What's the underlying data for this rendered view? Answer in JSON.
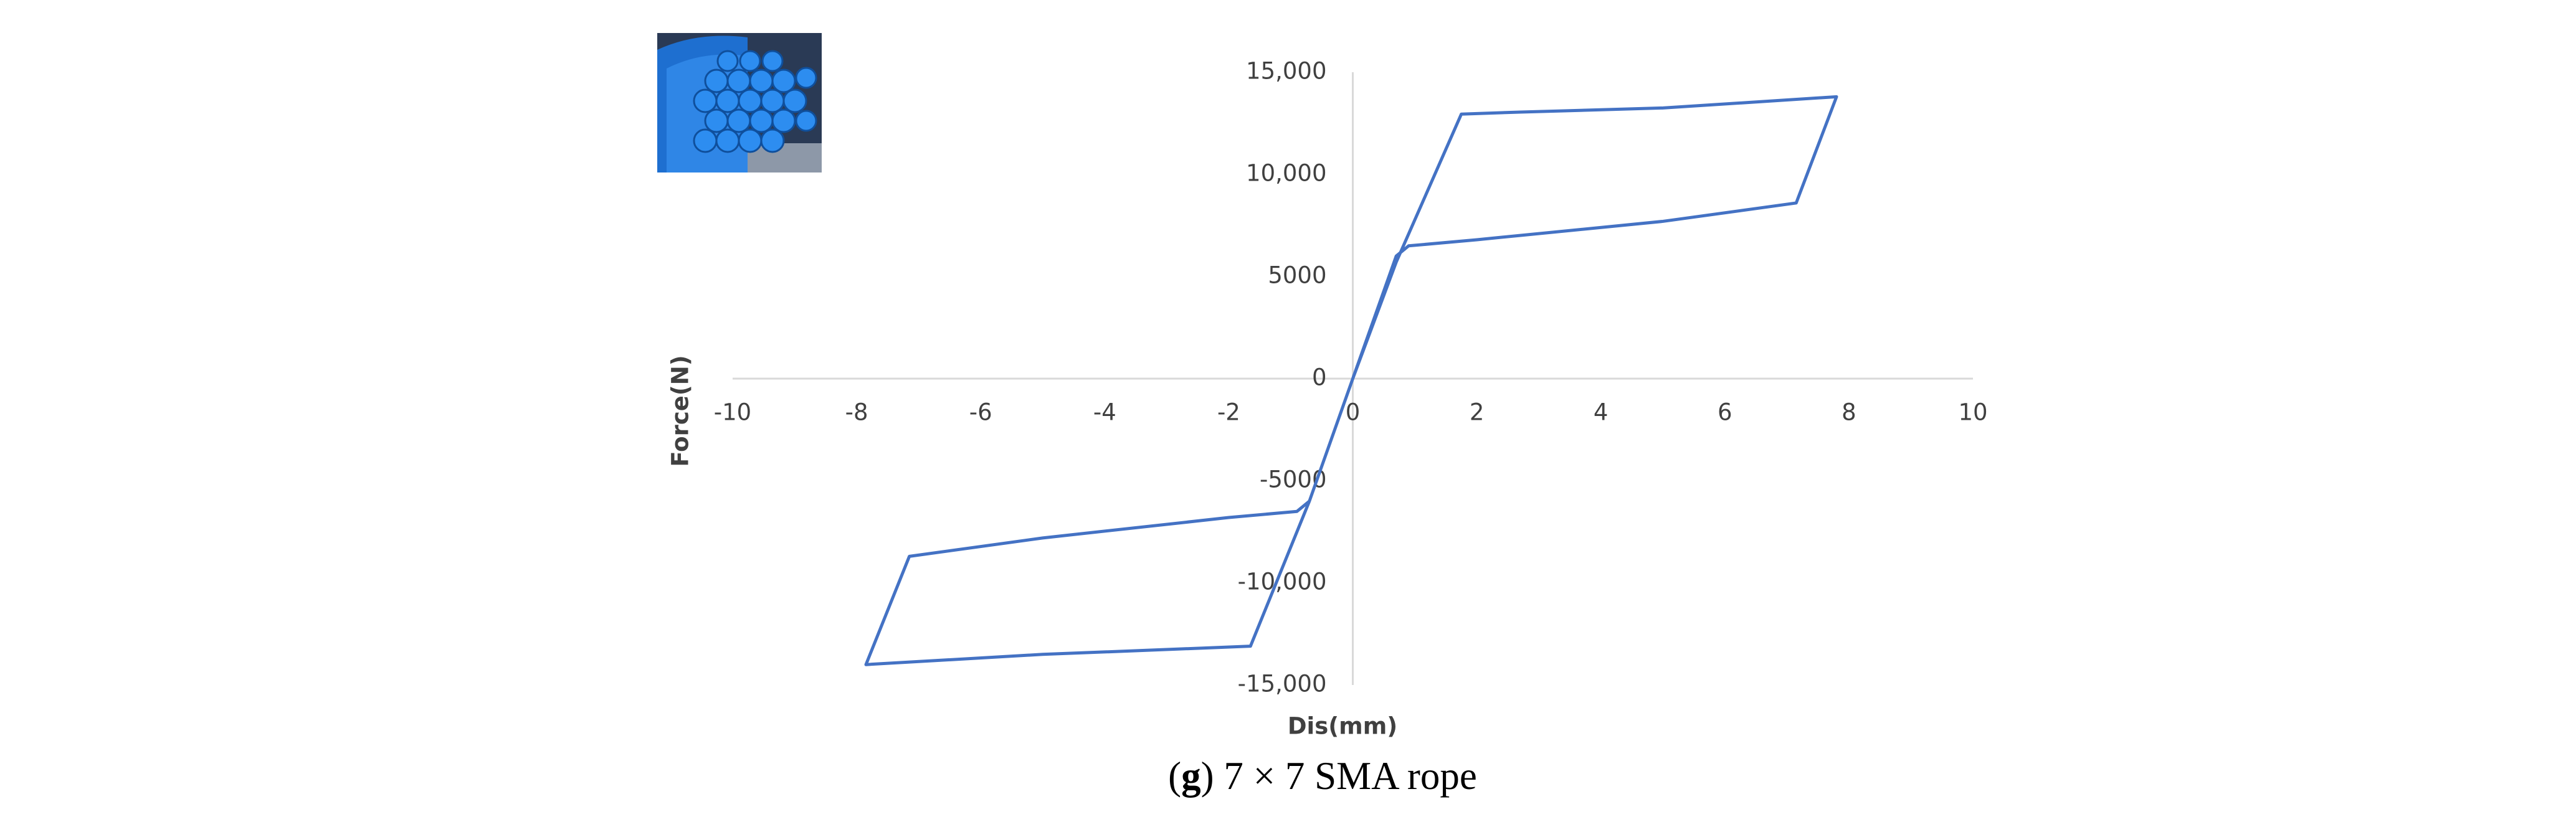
{
  "chart_data": {
    "type": "line",
    "x_label": "Dis(mm)",
    "y_label": "Force(N)",
    "x": [
      0,
      0.7,
      1.75,
      2.7,
      5,
      7.8,
      7.15,
      5,
      2,
      0.9,
      0.7,
      0,
      -0.7,
      -1.65,
      -5,
      -7.85,
      -7.15,
      -5,
      -2,
      -0.9,
      -0.7,
      0
    ],
    "series": [
      {
        "name": "7 × 7 SMA rope",
        "color": "#4472c4",
        "values": [
          0,
          5700,
          12950,
          13050,
          13250,
          13800,
          8600,
          7700,
          6800,
          6500,
          6000,
          0,
          -6000,
          -13100,
          -13500,
          -14000,
          -8700,
          -7800,
          -6800,
          -6500,
          -6000,
          0
        ]
      }
    ],
    "xlim": [
      -10,
      10
    ],
    "xticks": [
      -10,
      -8,
      -6,
      -4,
      -2,
      0,
      2,
      4,
      6,
      8,
      10
    ],
    "ylim": [
      -15000,
      15000
    ],
    "yticks": [
      {
        "value": -15000,
        "label": "-15,000"
      },
      {
        "value": -10000,
        "label": "-10,000"
      },
      -5000,
      0,
      5000,
      {
        "value": 10000,
        "label": "10,000"
      },
      {
        "value": 15000,
        "label": "15,000"
      }
    ],
    "grid": false,
    "caption": {
      "open": "(",
      "letter": "g",
      "text": ") 7 × 7 SMA rope"
    }
  }
}
